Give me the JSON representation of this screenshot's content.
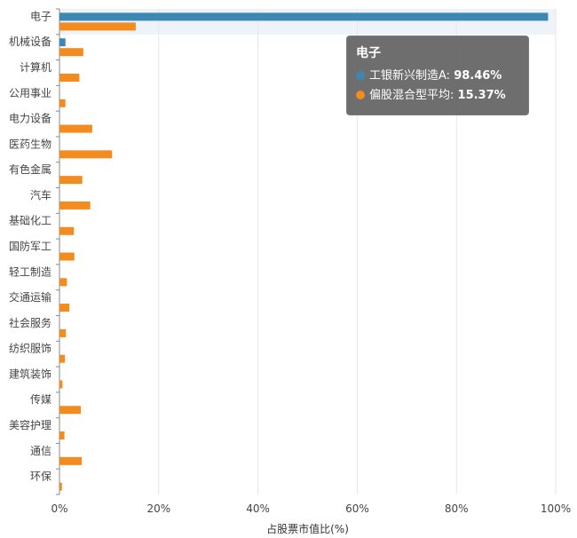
{
  "chart_data": {
    "type": "bar",
    "orientation": "horizontal",
    "categories": [
      "电子",
      "机械设备",
      "计算机",
      "公用事业",
      "电力设备",
      "医药生物",
      "有色金属",
      "汽车",
      "基础化工",
      "国防军工",
      "轻工制造",
      "交通运输",
      "社会服务",
      "纺织服饰",
      "建筑装饰",
      "传媒",
      "美容护理",
      "通信",
      "环保"
    ],
    "series": [
      {
        "name": "工银新兴制造A",
        "color": "#3d87b5",
        "values": [
          98.46,
          1.2,
          0,
          0,
          0,
          0,
          0,
          0,
          0,
          0,
          0,
          0,
          0,
          0,
          0,
          0,
          0,
          0,
          0
        ]
      },
      {
        "name": "偏股混合型平均",
        "color": "#f28c1e",
        "values": [
          15.37,
          4.8,
          4.0,
          1.2,
          6.6,
          10.6,
          4.6,
          6.2,
          2.9,
          3.0,
          1.5,
          2.0,
          1.3,
          1.1,
          0.6,
          4.3,
          1.0,
          4.5,
          0.5
        ]
      }
    ],
    "xlim": [
      0,
      100
    ],
    "xticks": [
      "0%",
      "20%",
      "40%",
      "60%",
      "80%",
      "100%"
    ],
    "xlabel": "占股票市值比(%)",
    "ylabel": "",
    "grid": true,
    "highlighted_category": "电子"
  },
  "tooltip": {
    "title": "电子",
    "rows": [
      {
        "name": "工银新兴制造A",
        "value": "98.46%",
        "color": "#3d87b5"
      },
      {
        "name": "偏股混合型平均",
        "value": "15.37%",
        "color": "#f28c1e"
      }
    ]
  }
}
